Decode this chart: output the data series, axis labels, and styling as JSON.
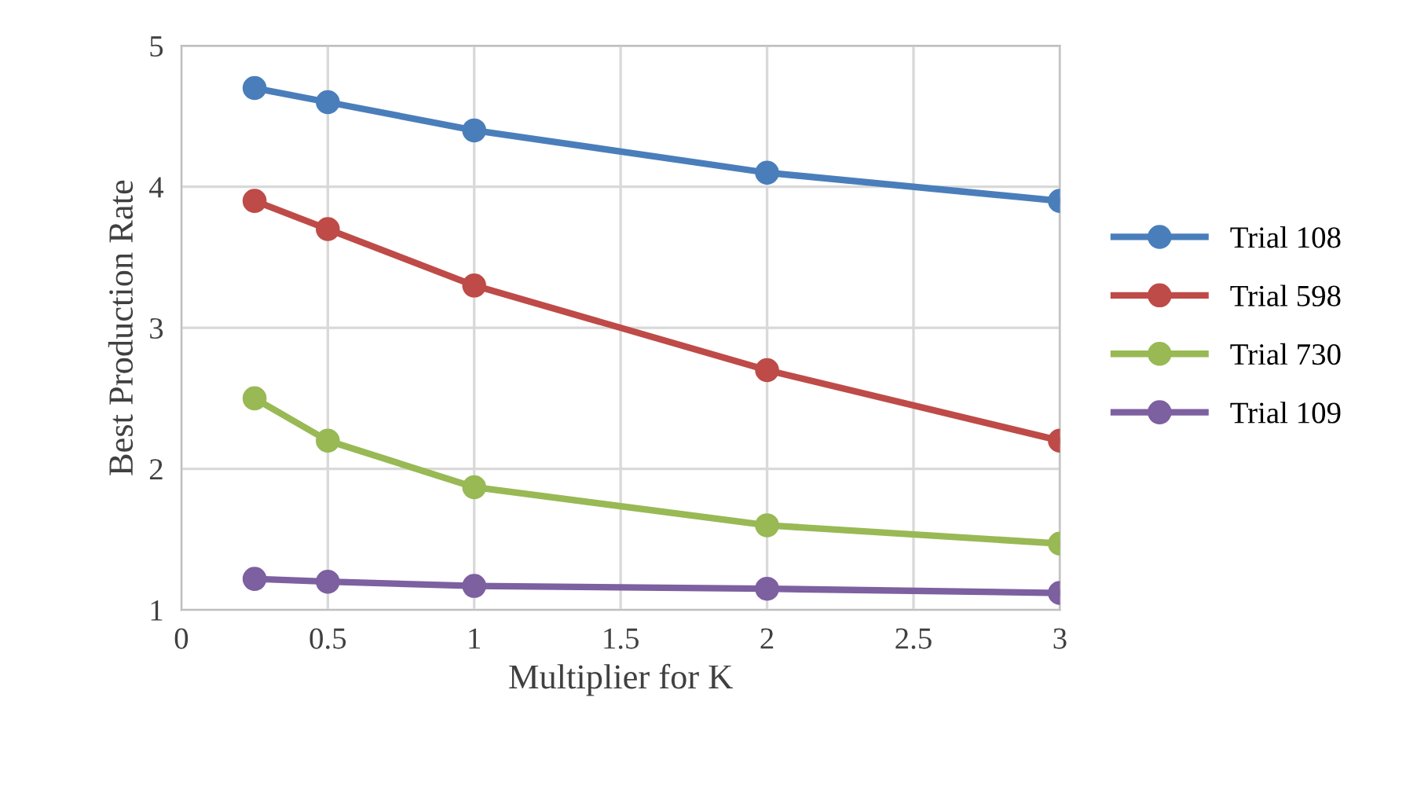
{
  "chart_data": {
    "type": "line",
    "xlabel": "Multiplier for K",
    "ylabel": "Best Production Rate",
    "x": [
      0.25,
      0.5,
      1,
      2,
      3
    ],
    "series": [
      {
        "name": "Trial 108",
        "color": "#4a7ebb",
        "values": [
          4.7,
          4.6,
          4.4,
          4.1,
          3.9
        ]
      },
      {
        "name": "Trial 598",
        "color": "#be4b48",
        "values": [
          3.9,
          3.7,
          3.3,
          2.7,
          2.2
        ]
      },
      {
        "name": "Trial 730",
        "color": "#98b954",
        "values": [
          2.5,
          2.2,
          1.87,
          1.6,
          1.47
        ]
      },
      {
        "name": "Trial 109",
        "color": "#7d60a0",
        "values": [
          1.22,
          1.2,
          1.17,
          1.15,
          1.12
        ]
      }
    ],
    "xlim": [
      0,
      3
    ],
    "ylim": [
      1,
      5
    ],
    "xticks": [
      0,
      0.5,
      1,
      1.5,
      2,
      2.5,
      3
    ],
    "yticks": [
      1,
      2,
      3,
      4,
      5
    ],
    "grid": true,
    "legend": "right",
    "marker": "circle",
    "line_style": "solid"
  }
}
